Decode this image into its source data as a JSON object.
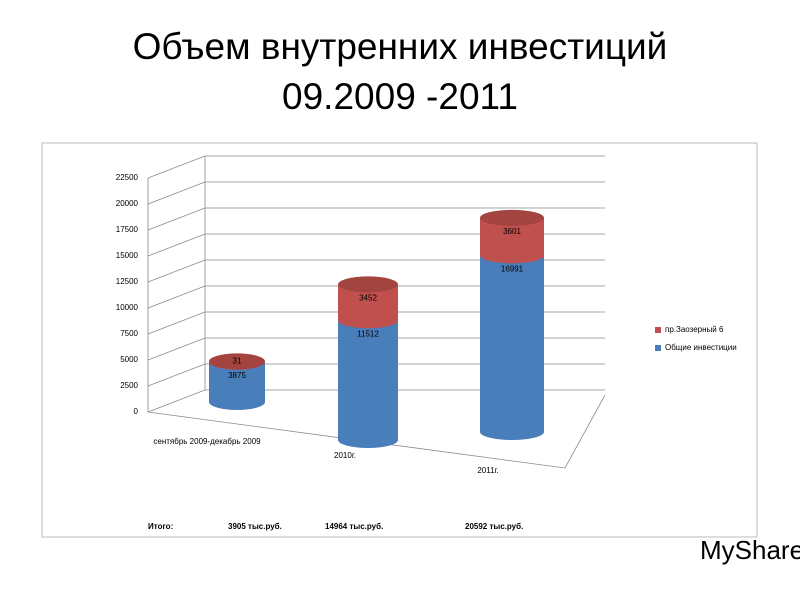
{
  "chart_data": {
    "type": "cylinder-stacked",
    "title": "Объем внутренних инвестиций 09.2009 -2011",
    "categories": [
      "сентябрь 2009-декабрь 2009",
      "2010г.",
      "2011г."
    ],
    "series": [
      {
        "name": "Общие инвестиции",
        "color": "#4a7ebb",
        "values": [
          3875,
          11512,
          16991
        ]
      },
      {
        "name": "пр.Заозерный 6",
        "color": "#c0504d",
        "values": [
          31,
          3452,
          3601
        ]
      }
    ],
    "ylim": [
      0,
      22500
    ],
    "yticks": [
      0,
      2500,
      5000,
      7500,
      10000,
      12500,
      15000,
      17500,
      20000,
      22500
    ],
    "grid": true,
    "legend": "right",
    "totals_label": "Итого:",
    "totals": [
      "3905 тыс.руб.",
      "14964 тыс.руб.",
      "20592 тыс.руб."
    ]
  },
  "watermark": "MyShared"
}
